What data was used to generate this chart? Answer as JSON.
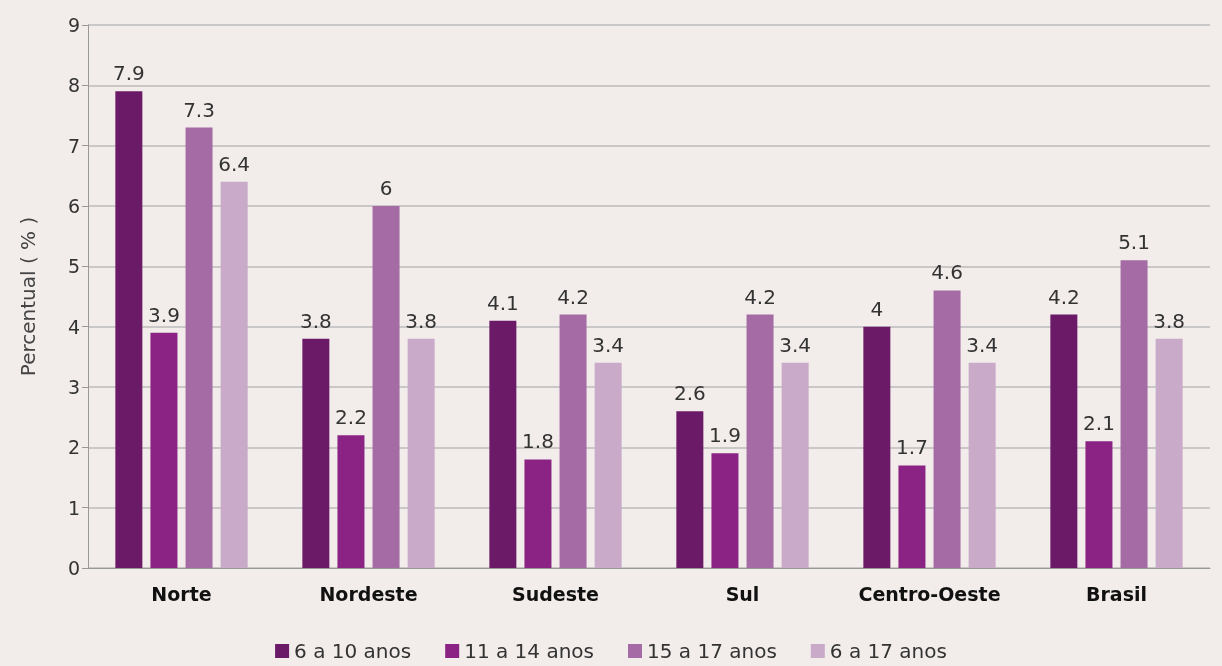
{
  "chart_data": {
    "type": "bar",
    "ylabel": "Percentual ( % )",
    "categories": [
      "Norte",
      "Nordeste",
      "Sudeste",
      "Sul",
      "Centro-Oeste",
      "Brasil"
    ],
    "series": [
      {
        "name": "6 a 10 anos",
        "color": "#6b1a68",
        "values": [
          7.9,
          3.8,
          4.1,
          2.6,
          4,
          4.2
        ]
      },
      {
        "name": "11 a 14 anos",
        "color": "#8a2383",
        "values": [
          3.9,
          2.2,
          1.8,
          1.9,
          1.7,
          2.1
        ]
      },
      {
        "name": "15 a 17 anos",
        "color": "#a56ba5",
        "values": [
          7.3,
          6,
          4.2,
          4.2,
          4.6,
          5.1
        ]
      },
      {
        "name": "6 a 17 anos",
        "color": "#c9abc9",
        "values": [
          6.4,
          3.8,
          3.4,
          3.4,
          3.4,
          3.8
        ]
      }
    ],
    "ylim": [
      0,
      9
    ],
    "yticks": [
      0,
      1,
      2,
      3,
      4,
      5,
      6,
      7,
      8,
      9
    ],
    "grid": "y",
    "legend": "bottom",
    "data_labels": true
  }
}
